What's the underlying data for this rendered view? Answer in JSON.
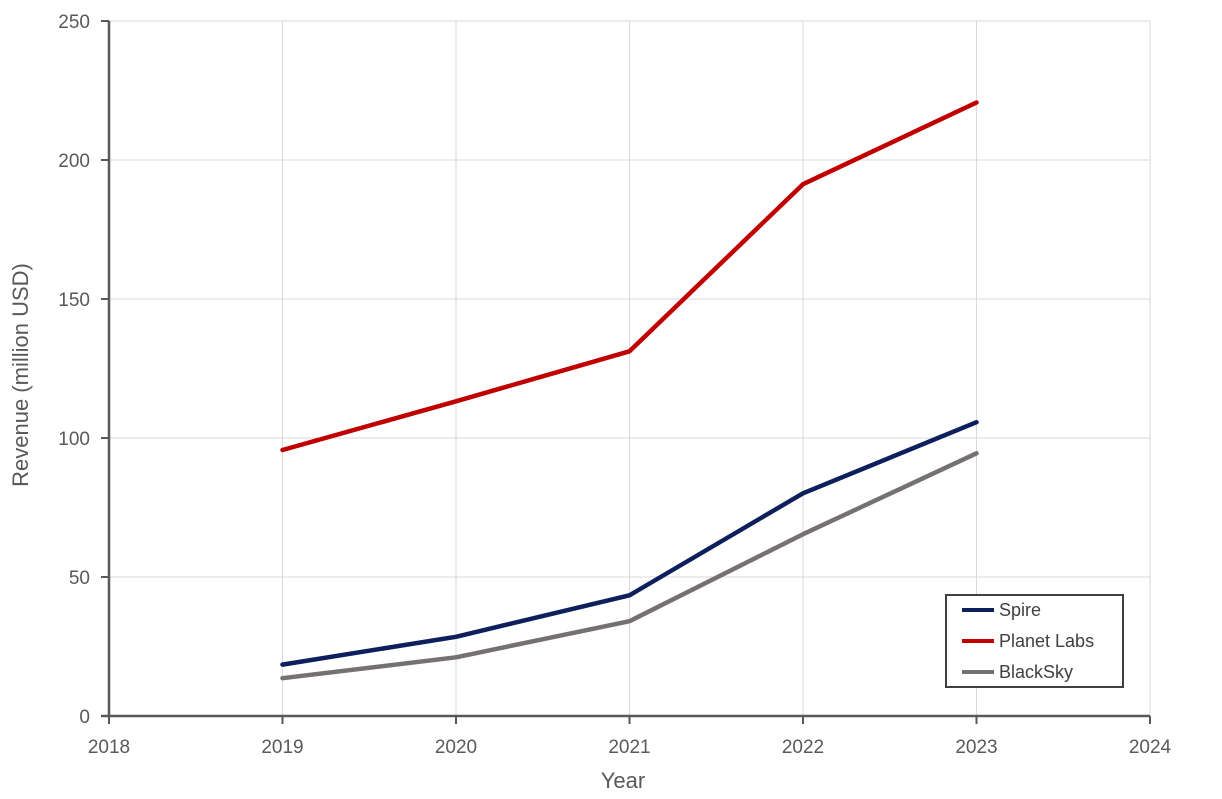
{
  "chart_data": {
    "type": "line",
    "title": "",
    "xlabel": "Year",
    "ylabel": "Revenue (million USD)",
    "xlim": [
      2018,
      2024
    ],
    "ylim": [
      0,
      250
    ],
    "x_ticks": [
      2018,
      2019,
      2020,
      2021,
      2022,
      2023,
      2024
    ],
    "y_ticks": [
      0,
      50,
      100,
      150,
      200,
      250
    ],
    "grid": true,
    "legend_position": "bottom-right",
    "x": [
      2019,
      2020,
      2021,
      2022,
      2023
    ],
    "series": [
      {
        "name": "Spire",
        "color": "#0D1F5C",
        "values": [
          18.5,
          28.5,
          43.4,
          80.1,
          105.7
        ]
      },
      {
        "name": "Planet Labs",
        "color": "#C00000",
        "values": [
          95.7,
          113.2,
          131.2,
          191.3,
          220.7
        ]
      },
      {
        "name": "BlackSky",
        "color": "#767171",
        "values": [
          13.6,
          21.1,
          34.1,
          65.4,
          94.5
        ]
      }
    ]
  }
}
